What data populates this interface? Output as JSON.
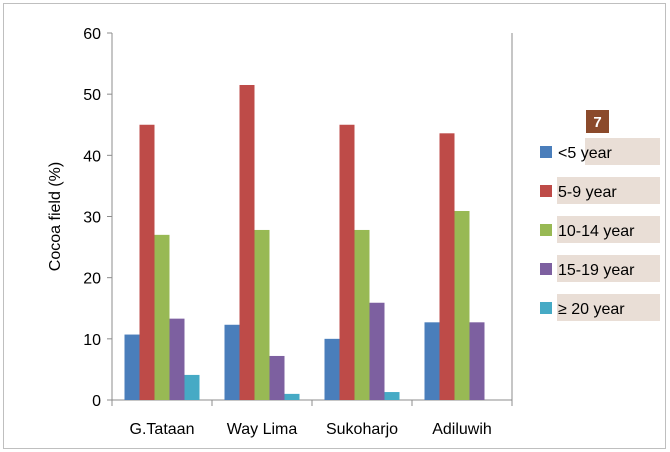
{
  "chart_data": {
    "type": "bar",
    "categories": [
      "G.Tataan",
      "Way Lima",
      "Sukoharjo",
      "Adiluwih"
    ],
    "series": [
      {
        "name": "<5 year",
        "color": "#4a7ebb",
        "values": [
          10.7,
          12.3,
          10.0,
          12.7
        ]
      },
      {
        "name": "5-9 year",
        "color": "#be4b48",
        "values": [
          45.0,
          51.5,
          45.0,
          43.6
        ]
      },
      {
        "name": "10-14 year",
        "color": "#98b954",
        "values": [
          27.0,
          27.8,
          27.8,
          30.9
        ]
      },
      {
        "name": "15-19 year",
        "color": "#7d60a0",
        "values": [
          13.3,
          7.2,
          15.9,
          12.7
        ]
      },
      {
        "name": "≥ 20 year",
        "color": "#46aac5",
        "values": [
          4.1,
          1.0,
          1.3,
          0.0
        ]
      }
    ],
    "ylabel": "Cocoa field (%)",
    "xlabel": "",
    "ylim": [
      0,
      60
    ],
    "yticks": [
      0,
      10,
      20,
      30,
      40,
      50,
      60
    ],
    "grid": false,
    "legend_position": "right",
    "badge": {
      "text": "7",
      "color": "#8b4a2b"
    },
    "legend_highlight_color": "#e9ded6"
  }
}
